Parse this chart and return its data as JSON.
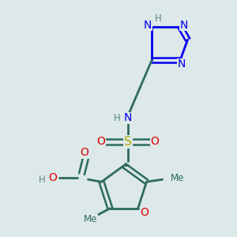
{
  "background_color": "#dde8e8",
  "triazole_color": "#0000ee",
  "atom_colors": {
    "N": "#0000ee",
    "O": "#dd0000",
    "S": "#aaaa00",
    "C": "#2d6b5e",
    "H": "#5a8a7a"
  },
  "figsize": [
    3.0,
    3.0
  ],
  "dpi": 100,
  "xlim": [
    0,
    300
  ],
  "ylim": [
    0,
    300
  ]
}
